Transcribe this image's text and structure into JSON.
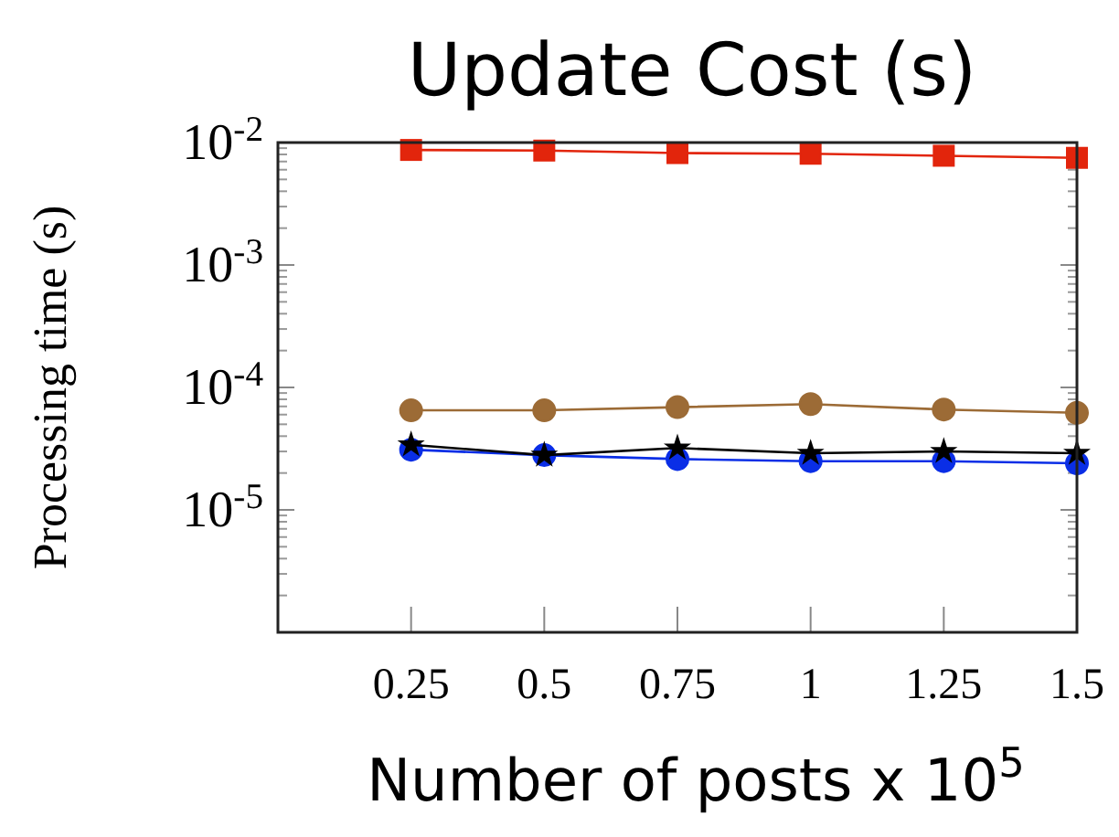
{
  "chart_data": {
    "type": "line",
    "title": "Update Cost (s)",
    "xlabel": "Number of posts x 10$^{5}$",
    "ylabel": "Processing time (s)",
    "x": [
      0.25,
      0.5,
      0.75,
      1,
      1.25,
      1.5
    ],
    "xlim": [
      0,
      1.5
    ],
    "xticks": [
      0.25,
      0.5,
      0.75,
      1,
      1.25,
      1.5
    ],
    "ylim": [
      1e-06,
      0.01
    ],
    "log": "y",
    "yticks": [
      {
        "value": 1e-05,
        "label": "10$^{-5}$"
      },
      {
        "value": 0.0001,
        "label": "10$^{-4}$"
      },
      {
        "value": 0.001,
        "label": "10$^{-3}$"
      },
      {
        "value": 0.01,
        "label": "10$^{-2}$"
      }
    ],
    "grid": false,
    "line_style": "solid",
    "series": [
      {
        "color": "#e2250c",
        "marker": "square",
        "values": [
          0.0087,
          0.0086,
          0.0082,
          0.0081,
          0.0078,
          0.0075
        ]
      },
      {
        "color": "#9c6b36",
        "marker": "circle",
        "values": [
          6.5e-05,
          6.5e-05,
          6.9e-05,
          7.3e-05,
          6.6e-05,
          6.2e-05
        ]
      },
      {
        "color": "#0a2ee6",
        "marker": "circle",
        "values": [
          3.1e-05,
          2.8e-05,
          2.6e-05,
          2.5e-05,
          2.5e-05,
          2.4e-05
        ]
      },
      {
        "color": "#000000",
        "marker": "star",
        "values": [
          3.4e-05,
          2.8e-05,
          3.2e-05,
          2.9e-05,
          3e-05,
          2.9e-05
        ]
      }
    ]
  }
}
